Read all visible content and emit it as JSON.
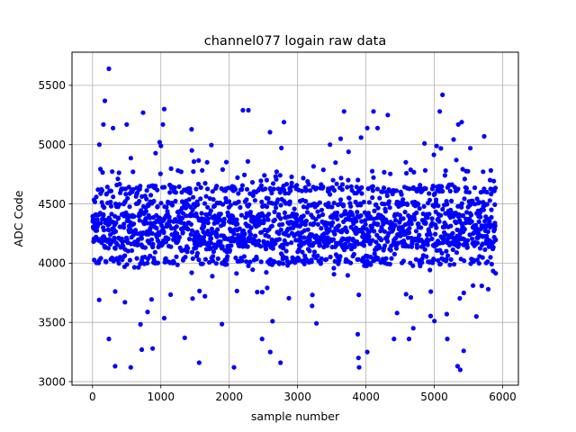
{
  "chart_data": {
    "type": "scatter",
    "title": "channel077 logain raw data",
    "xlabel": "sample number",
    "ylabel": "ADC Code",
    "xlim": [
      -300,
      6230
    ],
    "ylim": [
      2970,
      5780
    ],
    "xticks": [
      0,
      1000,
      2000,
      3000,
      4000,
      5000,
      6000
    ],
    "yticks": [
      3000,
      3500,
      4000,
      4500,
      5000,
      5500
    ],
    "grid": true,
    "marker_color": "#0000ff",
    "sample_count": 5900,
    "level_values": [
      4020,
      4150,
      4200,
      4270,
      4340,
      4400,
      4500,
      4620
    ],
    "core_range": [
      4100,
      4560
    ],
    "outliers": [
      {
        "x": 240,
        "y": 5640
      },
      {
        "x": 5120,
        "y": 5420
      },
      {
        "x": 180,
        "y": 5370
      },
      {
        "x": 1050,
        "y": 5300
      },
      {
        "x": 2200,
        "y": 5290
      },
      {
        "x": 2280,
        "y": 5290
      },
      {
        "x": 740,
        "y": 5270
      },
      {
        "x": 3680,
        "y": 5280
      },
      {
        "x": 4110,
        "y": 5280
      },
      {
        "x": 5080,
        "y": 5280
      },
      {
        "x": 4320,
        "y": 5250
      },
      {
        "x": 2800,
        "y": 5190
      },
      {
        "x": 5400,
        "y": 5190
      },
      {
        "x": 5350,
        "y": 5170
      },
      {
        "x": 160,
        "y": 5170
      },
      {
        "x": 500,
        "y": 5170
      },
      {
        "x": 1030,
        "y": 5170
      },
      {
        "x": 300,
        "y": 5140
      },
      {
        "x": 5730,
        "y": 5070
      },
      {
        "x": 3630,
        "y": 5050
      },
      {
        "x": 4020,
        "y": 5140
      },
      {
        "x": 4170,
        "y": 5140
      },
      {
        "x": 100,
        "y": 5000
      },
      {
        "x": 1450,
        "y": 5130
      },
      {
        "x": 240,
        "y": 3360
      },
      {
        "x": 330,
        "y": 3130
      },
      {
        "x": 560,
        "y": 3120
      },
      {
        "x": 1560,
        "y": 3160
      },
      {
        "x": 2070,
        "y": 3120
      },
      {
        "x": 2750,
        "y": 3160
      },
      {
        "x": 3900,
        "y": 3120
      },
      {
        "x": 3890,
        "y": 3200
      },
      {
        "x": 5340,
        "y": 3130
      },
      {
        "x": 5380,
        "y": 3100
      },
      {
        "x": 4020,
        "y": 3250
      },
      {
        "x": 5430,
        "y": 3260
      },
      {
        "x": 2600,
        "y": 3250
      },
      {
        "x": 720,
        "y": 3270
      },
      {
        "x": 880,
        "y": 3280
      },
      {
        "x": 1350,
        "y": 3370
      },
      {
        "x": 2480,
        "y": 3360
      },
      {
        "x": 4410,
        "y": 3360
      },
      {
        "x": 4630,
        "y": 3360
      },
      {
        "x": 5190,
        "y": 3360
      },
      {
        "x": 3880,
        "y": 3400
      }
    ]
  }
}
